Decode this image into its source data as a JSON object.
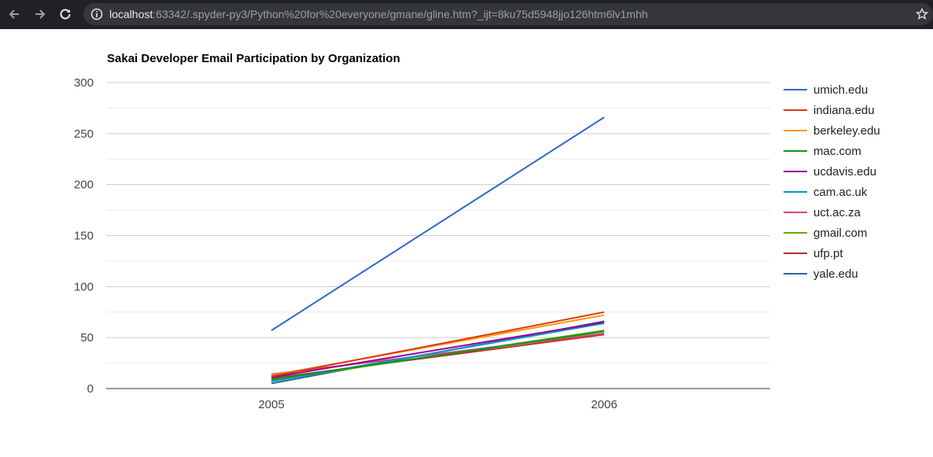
{
  "browser": {
    "back_icon": "arrow-left-icon",
    "forward_icon": "arrow-right-icon",
    "reload_icon": "reload-icon",
    "info_icon": "info-icon",
    "star_icon": "star-icon",
    "url_host": "localhost",
    "url_rest": ":63342/.spyder-py3/Python%20for%20everyone/gmane/gline.htm?_ijt=8ku75d5948jjo126htm6lv1mhh"
  },
  "colors": {
    "topbar": "#202124",
    "url_pill": "#35363a",
    "gridline": "#cccccc",
    "axis": "#333333",
    "tick_text": "#444444"
  },
  "chart_data": {
    "type": "line",
    "title": "Sakai Developer Email Participation by Organization",
    "xlabel": "",
    "ylabel": "",
    "categories": [
      "2005",
      "2006"
    ],
    "ylim": [
      0,
      300
    ],
    "yticks": [
      0,
      50,
      100,
      150,
      200,
      250,
      300
    ],
    "grid": true,
    "legend": "right",
    "series": [
      {
        "name": "umich.edu",
        "color": "#3366cc",
        "values": [
          57,
          266
        ]
      },
      {
        "name": "indiana.edu",
        "color": "#dc3912",
        "values": [
          12,
          75
        ]
      },
      {
        "name": "berkeley.edu",
        "color": "#ff9900",
        "values": [
          13,
          72
        ]
      },
      {
        "name": "mac.com",
        "color": "#109618",
        "values": [
          9,
          56
        ]
      },
      {
        "name": "ucdavis.edu",
        "color": "#990099",
        "values": [
          11,
          65
        ]
      },
      {
        "name": "cam.ac.uk",
        "color": "#0099c6",
        "values": [
          7,
          64
        ]
      },
      {
        "name": "uct.ac.za",
        "color": "#dd4477",
        "values": [
          14,
          54
        ]
      },
      {
        "name": "gmail.com",
        "color": "#66aa00",
        "values": [
          8,
          57
        ]
      },
      {
        "name": "ufp.pt",
        "color": "#b82e2e",
        "values": [
          10,
          53
        ]
      },
      {
        "name": "yale.edu",
        "color": "#316395",
        "values": [
          5,
          66
        ]
      }
    ]
  }
}
